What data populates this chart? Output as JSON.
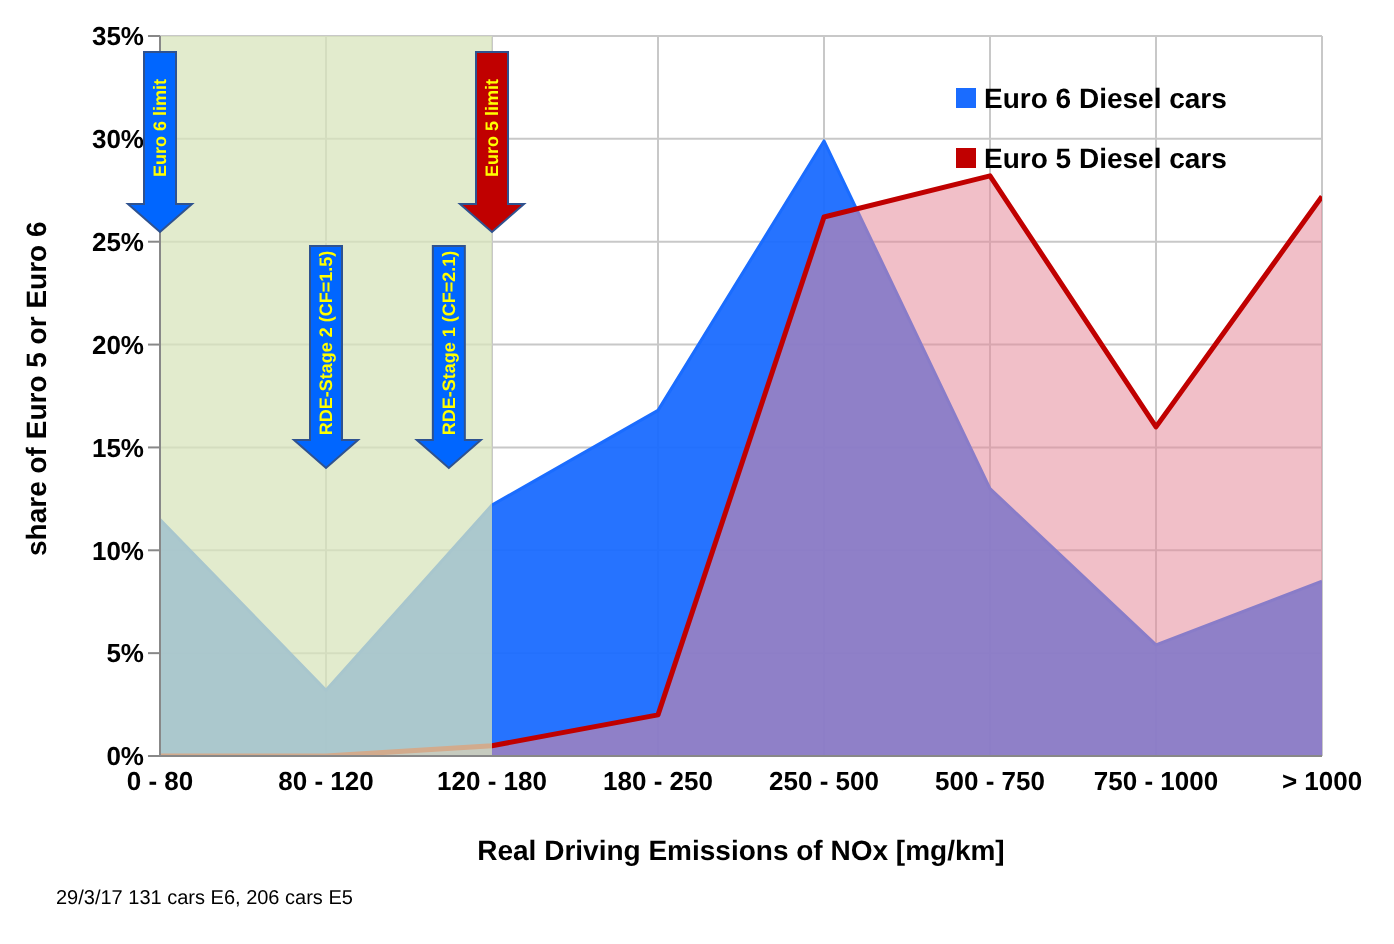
{
  "chart_data": {
    "type": "area",
    "xlabel": "Real Driving Emissions of NOx [mg/km]",
    "ylabel": "share of Euro 5 or Euro 6",
    "categories": [
      "0 - 80",
      "80 - 120",
      "120 - 180",
      "180 - 250",
      "250 - 500",
      "500 - 750",
      "750 - 1000",
      "> 1000"
    ],
    "series": [
      {
        "name": "Euro 6 Diesel cars",
        "color": "#1a6cff",
        "values": [
          11.5,
          3.2,
          12.2,
          16.8,
          29.9,
          13,
          5.4,
          8.5
        ]
      },
      {
        "name": "Euro 5 Diesel cars",
        "color": "#c00000",
        "values": [
          0,
          0,
          0.5,
          2,
          26.2,
          28.2,
          16,
          27.2
        ]
      }
    ],
    "ylim": [
      0,
      35
    ],
    "yticks": [
      {
        "value": 0,
        "label": "0%"
      },
      {
        "value": 5,
        "label": "5%"
      },
      {
        "value": 10,
        "label": "10%"
      },
      {
        "value": 15,
        "label": "15%"
      },
      {
        "value": 20,
        "label": "20%"
      },
      {
        "value": 25,
        "label": "25%"
      },
      {
        "value": 30,
        "label": "30%"
      },
      {
        "value": 35,
        "label": "35%"
      }
    ],
    "grid": true,
    "legend": "top right",
    "bands": [
      {
        "axis": "x",
        "from": "0 - 80",
        "to": "120 - 180",
        "color": "#d8e4bc"
      }
    ],
    "annotations": [
      "Euro 6 limit",
      "RDE-Stage 2 (CF=1.5)",
      "RDE-Stage 1 (CF=2.1)",
      "Euro 5 limit",
      "29/3/17  131 cars E6, 206 cars E5"
    ]
  }
}
